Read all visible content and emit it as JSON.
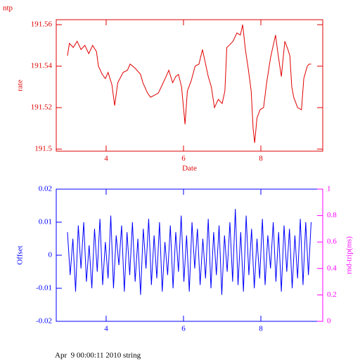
{
  "chart_data": [
    {
      "type": "line",
      "title": "ntp",
      "ylabel": "rate",
      "xlabel": "Date",
      "color": "#e00000",
      "xlim": [
        2.71,
        9.6
      ],
      "xticks": [
        4,
        6,
        8
      ],
      "ylim": [
        191.499,
        191.5624
      ],
      "yticks": [
        191.5,
        191.52,
        191.54,
        191.56
      ],
      "x": [
        3.0,
        3.05,
        3.15,
        3.25,
        3.35,
        3.45,
        3.55,
        3.65,
        3.75,
        3.8,
        3.9,
        3.98,
        4.05,
        4.15,
        4.22,
        4.3,
        4.44,
        4.55,
        4.62,
        4.75,
        4.89,
        4.95,
        5.07,
        5.15,
        5.25,
        5.35,
        5.45,
        5.55,
        5.62,
        5.72,
        5.8,
        5.87,
        5.95,
        6.04,
        6.1,
        6.2,
        6.3,
        6.4,
        6.49,
        6.56,
        6.64,
        6.72,
        6.8,
        6.9,
        7.0,
        7.07,
        7.12,
        7.18,
        7.28,
        7.38,
        7.47,
        7.53,
        7.6,
        7.68,
        7.75,
        7.8,
        7.84,
        7.9,
        7.98,
        8.07,
        8.15,
        8.25,
        8.32,
        8.38,
        8.45,
        8.53,
        8.62,
        8.7,
        8.75,
        8.8,
        8.85,
        8.95,
        9.05,
        9.11,
        9.2,
        9.25,
        9.3
      ],
      "values": [
        191.545,
        191.551,
        191.549,
        191.552,
        191.548,
        191.55,
        191.546,
        191.55,
        191.547,
        191.54,
        191.536,
        191.534,
        191.537,
        191.531,
        191.521,
        191.532,
        191.537,
        191.538,
        191.541,
        191.539,
        191.536,
        191.532,
        191.527,
        191.525,
        191.526,
        191.527,
        191.531,
        191.535,
        191.538,
        191.532,
        191.535,
        191.536,
        191.53,
        191.512,
        191.528,
        191.533,
        191.54,
        191.541,
        191.548,
        191.542,
        191.535,
        191.53,
        191.52,
        191.524,
        191.522,
        191.528,
        191.549,
        191.55,
        191.552,
        191.556,
        191.555,
        191.56,
        191.548,
        191.538,
        191.528,
        191.51,
        191.503,
        191.515,
        191.519,
        191.52,
        191.532,
        191.544,
        191.55,
        191.555,
        191.545,
        191.535,
        191.552,
        191.548,
        191.545,
        191.53,
        191.525,
        191.52,
        191.519,
        191.534,
        191.54,
        191.541,
        191.541
      ]
    },
    {
      "type": "line",
      "ylabel": "Offset",
      "color": "#0000ff",
      "xlim": [
        2.71,
        9.6
      ],
      "xticks": [
        4,
        6,
        8
      ],
      "ylim": [
        -0.02,
        0.02
      ],
      "yticks": [
        -0.02,
        -0.01,
        0,
        0.01,
        0.02
      ],
      "y2label": "rnd-trip(ms)",
      "y2color": "#ff00ff",
      "y2lim": [
        0,
        1
      ],
      "y2ticks": [
        0,
        0.2,
        0.4,
        0.6,
        0.8,
        1
      ],
      "x": [
        3,
        3.07,
        3.14,
        3.21,
        3.28,
        3.35,
        3.42,
        3.49,
        3.56,
        3.63,
        3.7,
        3.77,
        3.84,
        3.91,
        3.98,
        4.05,
        4.12,
        4.19,
        4.26,
        4.33,
        4.4,
        4.47,
        4.54,
        4.61,
        4.68,
        4.75,
        4.82,
        4.89,
        4.96,
        5.03,
        5.1,
        5.17,
        5.24,
        5.31,
        5.38,
        5.45,
        5.52,
        5.59,
        5.66,
        5.73,
        5.8,
        5.87,
        5.94,
        6.01,
        6.08,
        6.15,
        6.22,
        6.29,
        6.36,
        6.43,
        6.5,
        6.57,
        6.64,
        6.71,
        6.78,
        6.85,
        6.92,
        6.99,
        7.06,
        7.13,
        7.2,
        7.27,
        7.34,
        7.41,
        7.48,
        7.55,
        7.62,
        7.69,
        7.76,
        7.83,
        7.9,
        7.97,
        8.04,
        8.11,
        8.18,
        8.25,
        8.32,
        8.39,
        8.46,
        8.53,
        8.6,
        8.67,
        8.74,
        8.81,
        8.88,
        8.95,
        9.02,
        9.09,
        9.16,
        9.23,
        9.3
      ],
      "values": [
        0.007,
        -0.006,
        0.005,
        -0.011,
        0.009,
        -0.004,
        0.01,
        -0.008,
        0.003,
        -0.01,
        0.008,
        -0.005,
        0.011,
        -0.009,
        0.004,
        -0.007,
        0.012,
        -0.01,
        0.006,
        -0.003,
        0.009,
        -0.011,
        0.007,
        -0.006,
        0.01,
        -0.008,
        0.005,
        -0.012,
        0.008,
        -0.004,
        0.011,
        -0.009,
        0.006,
        -0.007,
        0.01,
        -0.011,
        0.004,
        -0.006,
        0.009,
        -0.01,
        0.007,
        -0.005,
        0.012,
        -0.008,
        0.006,
        -0.011,
        0.01,
        -0.004,
        0.008,
        -0.009,
        0.005,
        -0.007,
        0.011,
        -0.01,
        0.007,
        -0.006,
        0.009,
        -0.012,
        0.006,
        -0.005,
        0.01,
        -0.008,
        0.014,
        -0.009,
        0.007,
        -0.011,
        0.012,
        -0.006,
        0.008,
        -0.01,
        0.005,
        -0.007,
        0.011,
        -0.009,
        0.006,
        -0.004,
        0.01,
        -0.008,
        0.007,
        -0.011,
        0.009,
        -0.005,
        0.008,
        -0.01,
        0.006,
        -0.007,
        0.011,
        -0.009,
        0.01,
        -0.006,
        0.01
      ]
    }
  ],
  "footer": "Apr  9 00:00:11 2010 string"
}
